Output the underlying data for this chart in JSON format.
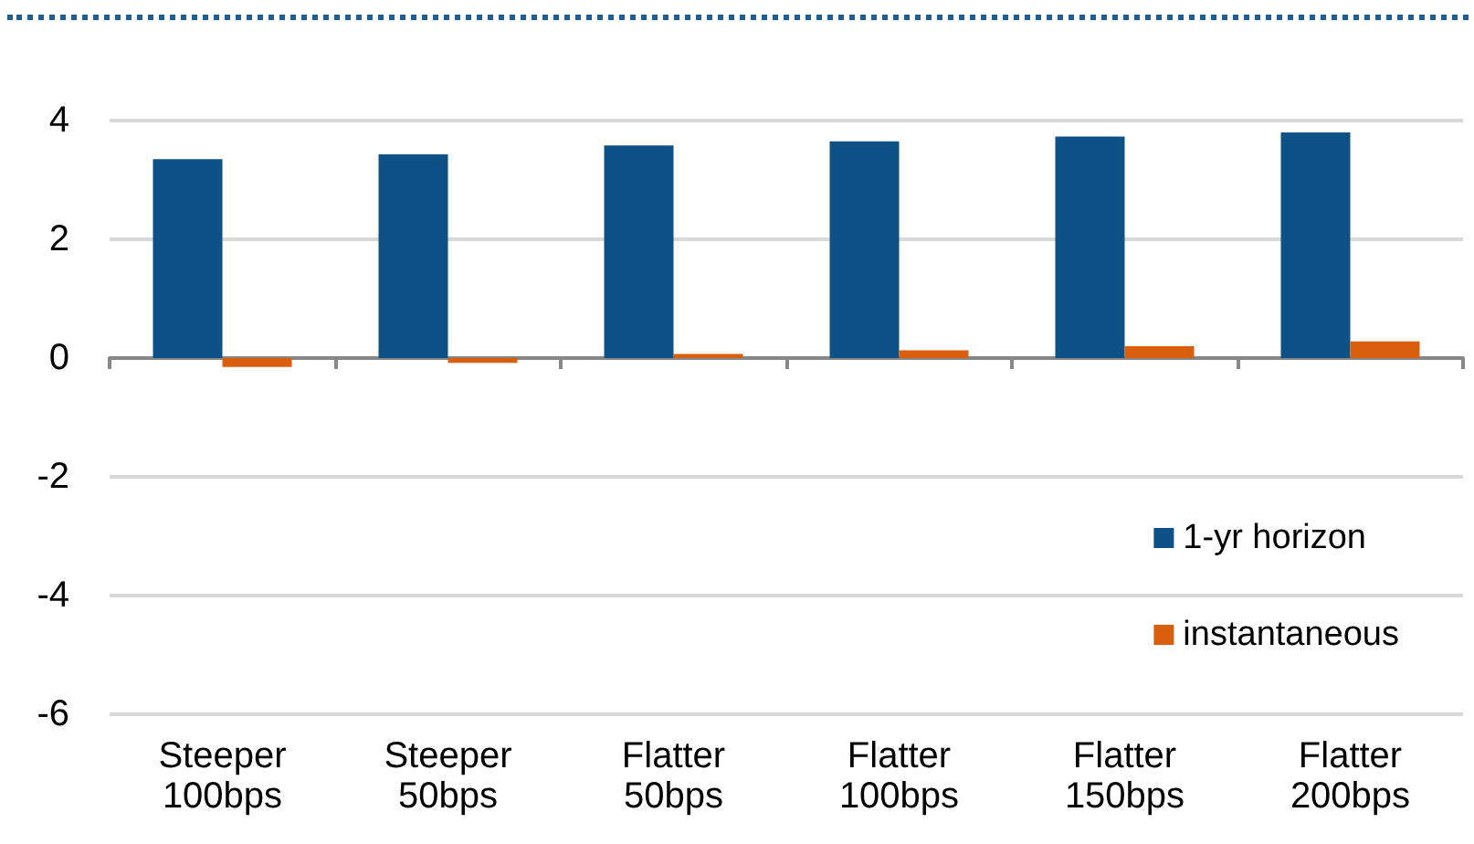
{
  "chart_data": {
    "type": "bar",
    "categories": [
      "Steeper\n100bps",
      "Steeper\n50bps",
      "Flatter\n50bps",
      "Flatter\n100bps",
      "Flatter\n150bps",
      "Flatter\n200bps"
    ],
    "series": [
      {
        "name": "1-yr horizon",
        "color": "#0d5186",
        "values": [
          3.35,
          3.43,
          3.58,
          3.65,
          3.73,
          3.8
        ]
      },
      {
        "name": "instantaneous",
        "color": "#d95f0e",
        "values": [
          -0.15,
          -0.08,
          0.07,
          0.13,
          0.2,
          0.28
        ]
      }
    ],
    "ylim": [
      -6,
      4
    ],
    "yticks": [
      -6,
      -4,
      -2,
      0,
      2,
      4
    ],
    "grid": "y",
    "legend": "bottom right"
  }
}
